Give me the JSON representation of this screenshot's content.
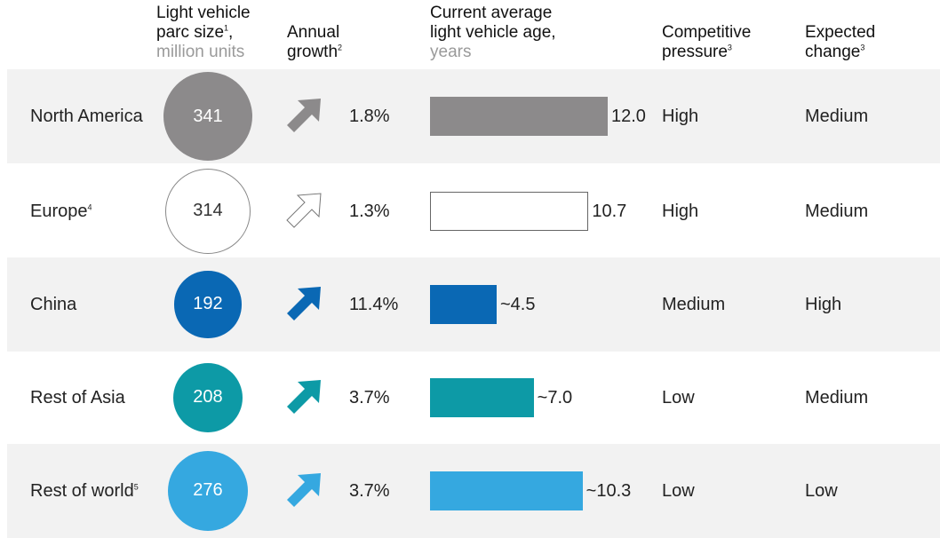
{
  "headers": {
    "parc_line1": "Light vehicle",
    "parc_line2": "parc size",
    "parc_sup": "1",
    "parc_comma": ",",
    "parc_sub": "million units",
    "growth_line1": "Annual",
    "growth_line2": "growth",
    "growth_sup": "2",
    "age_line1": "Current average",
    "age_line2": "light vehicle age,",
    "age_sub": "years",
    "pressure_line1": "Competitive",
    "pressure_line2": "pressure",
    "pressure_sup": "3",
    "change_line1": "Expected",
    "change_line2": "change",
    "change_sup": "3"
  },
  "colors": {
    "north_america": "#8c8a8b",
    "europe": "#ffffff",
    "china": "#0a68b4",
    "rest_of_asia": "#0d9aa6",
    "rest_of_world": "#35a8e0",
    "row_shade": "#f2f2f2"
  },
  "chart_data": {
    "type": "table",
    "rows": [
      {
        "region": "North America",
        "region_sup": "",
        "parc_size": 341,
        "parc_label": "341",
        "growth": "1.8%",
        "arrow": "arrow-up-right-icon",
        "age": 12.0,
        "age_label": "12.0",
        "pressure": "High",
        "change": "Medium",
        "color": "#8c8a8b",
        "outlined": false,
        "shaded": true
      },
      {
        "region": "Europe",
        "region_sup": "4",
        "parc_size": 314,
        "parc_label": "314",
        "growth": "1.3%",
        "arrow": "arrow-up-right-icon",
        "age": 10.7,
        "age_label": "10.7",
        "pressure": "High",
        "change": "Medium",
        "color": "#ffffff",
        "outlined": true,
        "shaded": false
      },
      {
        "region": "China",
        "region_sup": "",
        "parc_size": 192,
        "parc_label": "192",
        "growth": "11.4%",
        "arrow": "arrow-up-right-icon",
        "age": 4.5,
        "age_label": "~4.5",
        "pressure": "Medium",
        "change": "High",
        "color": "#0a68b4",
        "outlined": false,
        "shaded": true
      },
      {
        "region": "Rest of Asia",
        "region_sup": "",
        "parc_size": 208,
        "parc_label": "208",
        "growth": "3.7%",
        "arrow": "arrow-up-right-icon",
        "age": 7.0,
        "age_label": "~7.0",
        "pressure": "Low",
        "change": "Medium",
        "color": "#0d9aa6",
        "outlined": false,
        "shaded": false
      },
      {
        "region": "Rest of world",
        "region_sup": "5",
        "parc_size": 276,
        "parc_label": "276",
        "growth": "3.7%",
        "arrow": "arrow-up-right-icon",
        "age": 10.3,
        "age_label": "~10.3",
        "pressure": "Low",
        "change": "Low",
        "color": "#35a8e0",
        "outlined": false,
        "shaded": true
      }
    ]
  }
}
